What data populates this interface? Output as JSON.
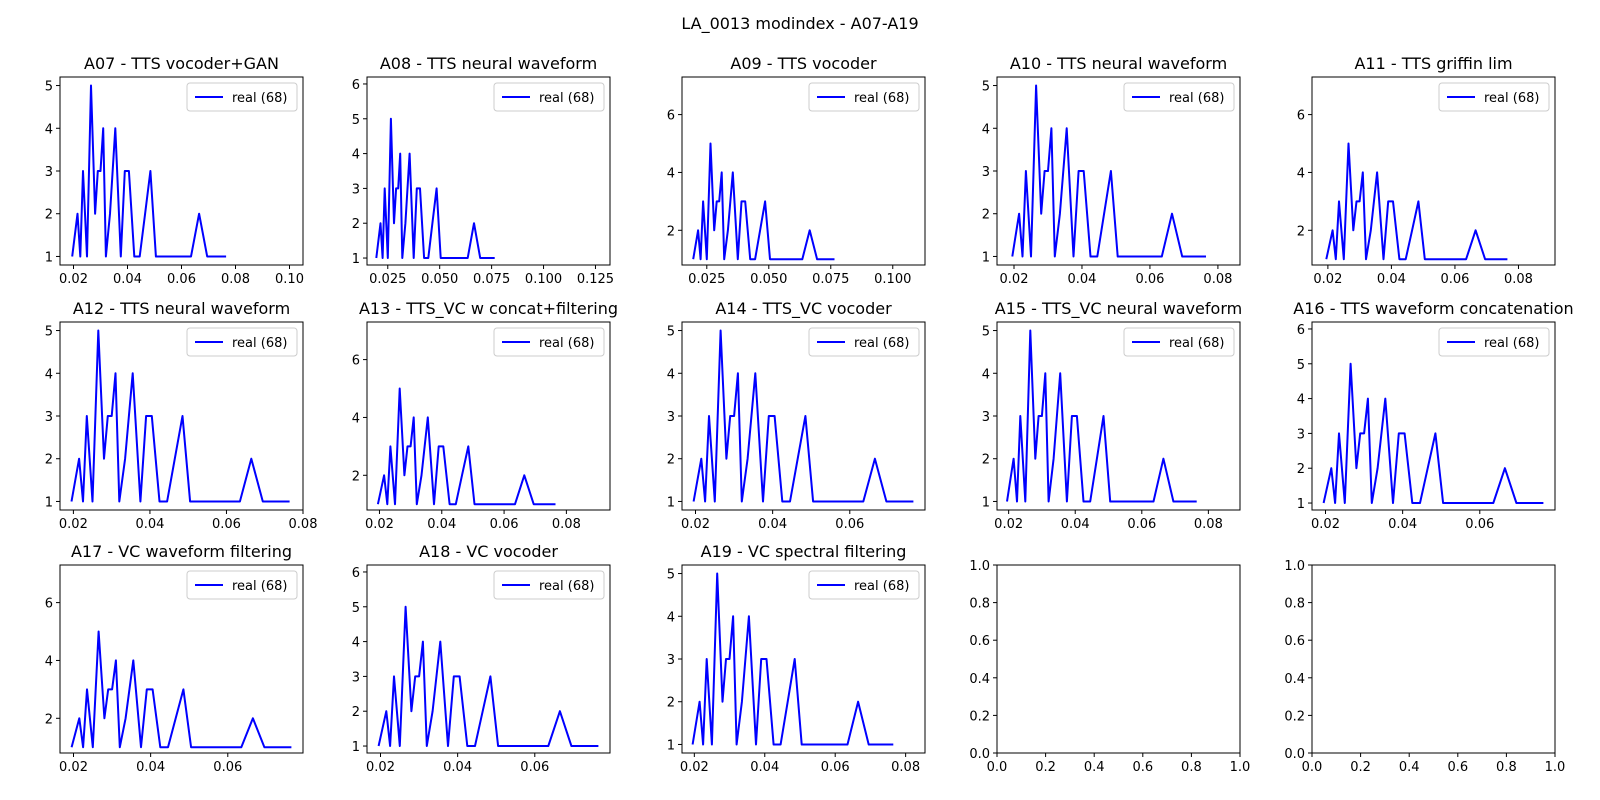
{
  "figure": {
    "suptitle": "LA_0013 modindex - A07-A19"
  },
  "series_x": [
    0.0195,
    0.0215,
    0.0225,
    0.0235,
    0.025,
    0.0265,
    0.028,
    0.029,
    0.03,
    0.031,
    0.032,
    0.0335,
    0.0355,
    0.0375,
    0.039,
    0.0405,
    0.0425,
    0.0445,
    0.0465,
    0.0485,
    0.0505,
    0.053,
    0.0555,
    0.058,
    0.0605,
    0.0635,
    0.0665,
    0.0695,
    0.0725,
    0.0765
  ],
  "series_y": [
    1,
    2,
    1,
    3,
    1,
    5,
    2,
    3,
    3,
    4,
    1,
    2,
    4,
    1,
    3,
    3,
    1,
    1,
    2,
    3,
    1,
    1,
    1,
    1,
    1,
    1,
    2,
    1,
    1,
    1
  ],
  "chart_data": [
    {
      "type": "line",
      "title": "A07 - TTS vocoder+GAN",
      "series": [
        {
          "name": "real (68)",
          "color": "#0000ff"
        }
      ],
      "legend": "upper right",
      "xlim": [
        0.015,
        0.105
      ],
      "ylim": [
        0.8,
        5.2
      ],
      "xticks": [
        0.02,
        0.04,
        0.06,
        0.08,
        0.1
      ],
      "xtick_labels": [
        "0.02",
        "0.04",
        "0.06",
        "0.08",
        "0.10"
      ],
      "yticks": [
        1,
        2,
        3,
        4,
        5
      ],
      "ytick_labels": [
        "1",
        "2",
        "3",
        "4",
        "5"
      ]
    },
    {
      "type": "line",
      "title": "A08 - TTS neural waveform",
      "series": [
        {
          "name": "real (68)",
          "color": "#0000ff"
        }
      ],
      "legend": "upper right",
      "xlim": [
        0.015,
        0.132
      ],
      "ylim": [
        0.8,
        6.2
      ],
      "xticks": [
        0.025,
        0.05,
        0.075,
        0.1,
        0.125
      ],
      "xtick_labels": [
        "0.025",
        "0.050",
        "0.075",
        "0.100",
        "0.125"
      ],
      "yticks": [
        1,
        2,
        3,
        4,
        5,
        6
      ],
      "ytick_labels": [
        "1",
        "2",
        "3",
        "4",
        "5",
        "6"
      ]
    },
    {
      "type": "line",
      "title": "A09 - TTS vocoder",
      "series": [
        {
          "name": "real (68)",
          "color": "#0000ff"
        }
      ],
      "legend": "upper right",
      "xlim": [
        0.015,
        0.113
      ],
      "ylim": [
        0.8,
        7.3
      ],
      "xticks": [
        0.025,
        0.05,
        0.075,
        0.1
      ],
      "xtick_labels": [
        "0.025",
        "0.050",
        "0.075",
        "0.100"
      ],
      "yticks": [
        2,
        4,
        6
      ],
      "ytick_labels": [
        "2",
        "4",
        "6"
      ]
    },
    {
      "type": "line",
      "title": "A10 - TTS neural waveform",
      "series": [
        {
          "name": "real (68)",
          "color": "#0000ff"
        }
      ],
      "legend": "upper right",
      "xlim": [
        0.015,
        0.0865
      ],
      "ylim": [
        0.8,
        5.2
      ],
      "xticks": [
        0.02,
        0.04,
        0.06,
        0.08
      ],
      "xtick_labels": [
        "0.02",
        "0.04",
        "0.06",
        "0.08"
      ],
      "yticks": [
        1,
        2,
        3,
        4,
        5
      ],
      "ytick_labels": [
        "1",
        "2",
        "3",
        "4",
        "5"
      ]
    },
    {
      "type": "line",
      "title": "A11 - TTS griffin lim",
      "series": [
        {
          "name": "real (68)",
          "color": "#0000ff"
        }
      ],
      "legend": "upper right",
      "xlim": [
        0.015,
        0.0915
      ],
      "ylim": [
        0.8,
        7.3
      ],
      "xticks": [
        0.02,
        0.04,
        0.06,
        0.08
      ],
      "xtick_labels": [
        "0.02",
        "0.04",
        "0.06",
        "0.08"
      ],
      "yticks": [
        2,
        4,
        6
      ],
      "ytick_labels": [
        "2",
        "4",
        "6"
      ]
    },
    {
      "type": "line",
      "title": "A12 - TTS neural waveform",
      "series": [
        {
          "name": "real (68)",
          "color": "#0000ff"
        }
      ],
      "legend": "upper right",
      "xlim": [
        0.0165,
        0.08
      ],
      "ylim": [
        0.8,
        5.2
      ],
      "xticks": [
        0.02,
        0.04,
        0.06,
        0.08
      ],
      "xtick_labels": [
        "0.02",
        "0.04",
        "0.06",
        "0.08"
      ],
      "yticks": [
        1,
        2,
        3,
        4,
        5
      ],
      "ytick_labels": [
        "1",
        "2",
        "3",
        "4",
        "5"
      ]
    },
    {
      "type": "line",
      "title": "A13 - TTS_VC w concat+filtering",
      "series": [
        {
          "name": "real (68)",
          "color": "#0000ff"
        }
      ],
      "legend": "upper right",
      "xlim": [
        0.016,
        0.094
      ],
      "ylim": [
        0.8,
        7.3
      ],
      "xticks": [
        0.02,
        0.04,
        0.06,
        0.08
      ],
      "xtick_labels": [
        "0.02",
        "0.04",
        "0.06",
        "0.08"
      ],
      "yticks": [
        2,
        4,
        6
      ],
      "ytick_labels": [
        "2",
        "4",
        "6"
      ]
    },
    {
      "type": "line",
      "title": "A14 - TTS_VC vocoder",
      "series": [
        {
          "name": "real (68)",
          "color": "#0000ff"
        }
      ],
      "legend": "upper right",
      "xlim": [
        0.0165,
        0.0795
      ],
      "ylim": [
        0.8,
        5.2
      ],
      "xticks": [
        0.02,
        0.04,
        0.06
      ],
      "xtick_labels": [
        "0.02",
        "0.04",
        "0.06"
      ],
      "yticks": [
        1,
        2,
        3,
        4,
        5
      ],
      "ytick_labels": [
        "1",
        "2",
        "3",
        "4",
        "5"
      ]
    },
    {
      "type": "line",
      "title": "A15 - TTS_VC neural waveform",
      "series": [
        {
          "name": "real (68)",
          "color": "#0000ff"
        }
      ],
      "legend": "upper right",
      "xlim": [
        0.0165,
        0.0895
      ],
      "ylim": [
        0.8,
        5.2
      ],
      "xticks": [
        0.02,
        0.04,
        0.06,
        0.08
      ],
      "xtick_labels": [
        "0.02",
        "0.04",
        "0.06",
        "0.08"
      ],
      "yticks": [
        1,
        2,
        3,
        4,
        5
      ],
      "ytick_labels": [
        "1",
        "2",
        "3",
        "4",
        "5"
      ]
    },
    {
      "type": "line",
      "title": "A16 - TTS waveform concatenation",
      "series": [
        {
          "name": "real (68)",
          "color": "#0000ff"
        }
      ],
      "legend": "upper right",
      "xlim": [
        0.0165,
        0.0795
      ],
      "ylim": [
        0.8,
        6.2
      ],
      "xticks": [
        0.02,
        0.04,
        0.06
      ],
      "xtick_labels": [
        "0.02",
        "0.04",
        "0.06"
      ],
      "yticks": [
        1,
        2,
        3,
        4,
        5,
        6
      ],
      "ytick_labels": [
        "1",
        "2",
        "3",
        "4",
        "5",
        "6"
      ]
    },
    {
      "type": "line",
      "title": "A17 - VC waveform filtering",
      "series": [
        {
          "name": "real (68)",
          "color": "#0000ff"
        }
      ],
      "legend": "upper right",
      "xlim": [
        0.0165,
        0.0795
      ],
      "ylim": [
        0.8,
        7.3
      ],
      "xticks": [
        0.02,
        0.04,
        0.06
      ],
      "xtick_labels": [
        "0.02",
        "0.04",
        "0.06"
      ],
      "yticks": [
        2,
        4,
        6
      ],
      "ytick_labels": [
        "2",
        "4",
        "6"
      ]
    },
    {
      "type": "line",
      "title": "A18 - VC vocoder",
      "series": [
        {
          "name": "real (68)",
          "color": "#0000ff"
        }
      ],
      "legend": "upper right",
      "xlim": [
        0.0165,
        0.0795
      ],
      "ylim": [
        0.8,
        6.2
      ],
      "xticks": [
        0.02,
        0.04,
        0.06
      ],
      "xtick_labels": [
        "0.02",
        "0.04",
        "0.06"
      ],
      "yticks": [
        1,
        2,
        3,
        4,
        5,
        6
      ],
      "ytick_labels": [
        "1",
        "2",
        "3",
        "4",
        "5",
        "6"
      ]
    },
    {
      "type": "line",
      "title": "A19 - VC spectral filtering",
      "series": [
        {
          "name": "real (68)",
          "color": "#0000ff"
        }
      ],
      "legend": "upper right",
      "xlim": [
        0.0165,
        0.0855
      ],
      "ylim": [
        0.8,
        5.2
      ],
      "xticks": [
        0.02,
        0.04,
        0.06,
        0.08
      ],
      "xtick_labels": [
        "0.02",
        "0.04",
        "0.06",
        "0.08"
      ],
      "yticks": [
        1,
        2,
        3,
        4,
        5
      ],
      "ytick_labels": [
        "1",
        "2",
        "3",
        "4",
        "5"
      ]
    },
    {
      "type": "line",
      "title": "",
      "series": [],
      "xlim": [
        0,
        1
      ],
      "ylim": [
        0,
        1
      ],
      "xticks": [
        0,
        0.2,
        0.4,
        0.6,
        0.8,
        1.0
      ],
      "xtick_labels": [
        "0.0",
        "0.2",
        "0.4",
        "0.6",
        "0.8",
        "1.0"
      ],
      "yticks": [
        0,
        0.2,
        0.4,
        0.6,
        0.8,
        1.0
      ],
      "ytick_labels": [
        "0.0",
        "0.2",
        "0.4",
        "0.6",
        "0.8",
        "1.0"
      ]
    },
    {
      "type": "line",
      "title": "",
      "series": [],
      "xlim": [
        0,
        1
      ],
      "ylim": [
        0,
        1
      ],
      "xticks": [
        0,
        0.2,
        0.4,
        0.6,
        0.8,
        1.0
      ],
      "xtick_labels": [
        "0.0",
        "0.2",
        "0.4",
        "0.6",
        "0.8",
        "1.0"
      ],
      "yticks": [
        0,
        0.2,
        0.4,
        0.6,
        0.8,
        1.0
      ],
      "ytick_labels": [
        "0.0",
        "0.2",
        "0.4",
        "0.6",
        "0.8",
        "1.0"
      ]
    }
  ]
}
